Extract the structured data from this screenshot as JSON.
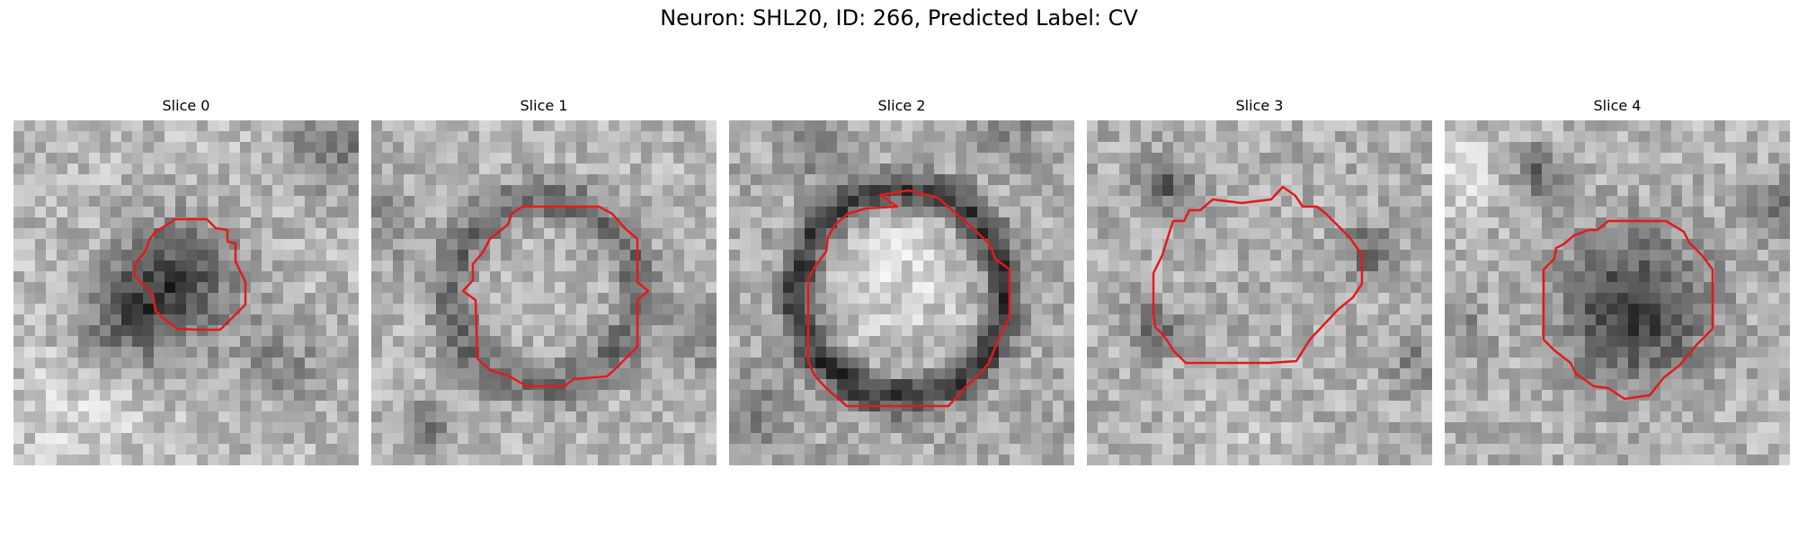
{
  "figure": {
    "title": "Neuron: SHL20, ID: 266, Predicted Label: CV"
  },
  "panels": [
    {
      "title": "Slice 0"
    },
    {
      "title": "Slice 1"
    },
    {
      "title": "Slice 2"
    },
    {
      "title": "Slice 3"
    },
    {
      "title": "Slice 4"
    }
  ],
  "colors": {
    "contour": "#e31a1c",
    "background": "#ffffff"
  }
}
